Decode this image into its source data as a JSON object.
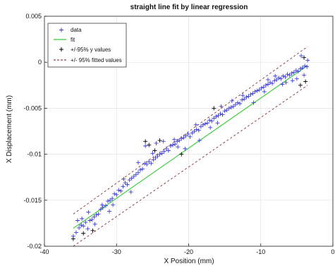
{
  "chart_data": {
    "type": "scatter",
    "title": "straight line fit by linear regression",
    "xlabel": "X Position (mm)",
    "ylabel": "X Displacement (mm)",
    "xlim": [
      -40,
      0
    ],
    "ylim": [
      -0.02,
      0.005
    ],
    "xticks": [
      -40,
      -30,
      -20,
      -10,
      0
    ],
    "xtick_labels": [
      "-40",
      "-30",
      "-20",
      "-10",
      "0"
    ],
    "yticks": [
      -0.02,
      -0.015,
      -0.01,
      -0.005,
      0,
      0.005
    ],
    "ytick_labels": [
      "-0.02",
      "-0.015",
      "-0.01",
      "-0.005",
      "0",
      "0.005"
    ],
    "grid": true,
    "legend_position": "top-left",
    "series": [
      {
        "name": "data",
        "marker": "+",
        "color": "#3b3bd6",
        "points": [
          [
            -36.0,
            -0.0189
          ],
          [
            -35.6,
            -0.0185
          ],
          [
            -35.2,
            -0.018
          ],
          [
            -34.9,
            -0.0177
          ],
          [
            -34.6,
            -0.0178
          ],
          [
            -34.3,
            -0.0174
          ],
          [
            -34.0,
            -0.0181
          ],
          [
            -33.7,
            -0.0172
          ],
          [
            -33.4,
            -0.0171
          ],
          [
            -33.1,
            -0.0168
          ],
          [
            -32.8,
            -0.0166
          ],
          [
            -32.5,
            -0.0165
          ],
          [
            -32.2,
            -0.016
          ],
          [
            -31.9,
            -0.0158
          ],
          [
            -31.5,
            -0.0156
          ],
          [
            -31.2,
            -0.0151
          ],
          [
            -30.9,
            -0.015
          ],
          [
            -30.6,
            -0.0148
          ],
          [
            -30.3,
            -0.0143
          ],
          [
            -30.0,
            -0.0144
          ],
          [
            -29.7,
            -0.0139
          ],
          [
            -29.4,
            -0.014
          ],
          [
            -29.1,
            -0.0135
          ],
          [
            -28.8,
            -0.0131
          ],
          [
            -28.5,
            -0.0133
          ],
          [
            -28.2,
            -0.0128
          ],
          [
            -27.9,
            -0.0126
          ],
          [
            -27.6,
            -0.0124
          ],
          [
            -27.3,
            -0.0122
          ],
          [
            -27.0,
            -0.012
          ],
          [
            -26.7,
            -0.0117
          ],
          [
            -26.4,
            -0.0116
          ],
          [
            -26.1,
            -0.011
          ],
          [
            -25.8,
            -0.0111
          ],
          [
            -25.5,
            -0.0108
          ],
          [
            -25.2,
            -0.011
          ],
          [
            -24.9,
            -0.0106
          ],
          [
            -24.6,
            -0.0104
          ],
          [
            -24.3,
            -0.0102
          ],
          [
            -24.0,
            -0.01
          ],
          [
            -23.7,
            -0.0099
          ],
          [
            -23.4,
            -0.0097
          ],
          [
            -23.1,
            -0.0094
          ],
          [
            -22.8,
            -0.0096
          ],
          [
            -22.5,
            -0.0091
          ],
          [
            -22.2,
            -0.009
          ],
          [
            -21.9,
            -0.0089
          ],
          [
            -21.6,
            -0.0086
          ],
          [
            -21.3,
            -0.0085
          ],
          [
            -21.0,
            -0.0083
          ],
          [
            -20.7,
            -0.0082
          ],
          [
            -20.4,
            -0.008
          ],
          [
            -20.1,
            -0.0078
          ],
          [
            -19.8,
            -0.0081
          ],
          [
            -19.5,
            -0.0077
          ],
          [
            -19.2,
            -0.0075
          ],
          [
            -18.9,
            -0.0073
          ],
          [
            -18.6,
            -0.0074
          ],
          [
            -18.3,
            -0.007
          ],
          [
            -18.0,
            -0.0068
          ],
          [
            -17.7,
            -0.0067
          ],
          [
            -17.4,
            -0.0066
          ],
          [
            -17.1,
            -0.0063
          ],
          [
            -16.8,
            -0.0064
          ],
          [
            -16.5,
            -0.0061
          ],
          [
            -16.2,
            -0.0059
          ],
          [
            -15.9,
            -0.0058
          ],
          [
            -15.6,
            -0.0056
          ],
          [
            -15.3,
            -0.0057
          ],
          [
            -15.0,
            -0.0053
          ],
          [
            -14.7,
            -0.0052
          ],
          [
            -14.4,
            -0.005
          ],
          [
            -14.1,
            -0.0049
          ],
          [
            -13.8,
            -0.0048
          ],
          [
            -13.5,
            -0.0046
          ],
          [
            -13.2,
            -0.0044
          ],
          [
            -12.9,
            -0.0045
          ],
          [
            -12.6,
            -0.0041
          ],
          [
            -12.3,
            -0.004
          ],
          [
            -12.0,
            -0.0038
          ],
          [
            -11.7,
            -0.0037
          ],
          [
            -11.4,
            -0.0035
          ],
          [
            -11.1,
            -0.0034
          ],
          [
            -10.8,
            -0.0032
          ],
          [
            -10.5,
            -0.0031
          ],
          [
            -10.2,
            -0.003
          ],
          [
            -9.9,
            -0.0028
          ],
          [
            -9.6,
            -0.0027
          ],
          [
            -9.3,
            -0.0025
          ],
          [
            -9.0,
            -0.0024
          ],
          [
            -8.7,
            -0.0022
          ],
          [
            -8.4,
            -0.0023
          ],
          [
            -8.1,
            -0.002
          ],
          [
            -7.8,
            -0.0019
          ],
          [
            -7.5,
            -0.0017
          ],
          [
            -7.2,
            -0.0018
          ],
          [
            -6.9,
            -0.0015
          ],
          [
            -6.6,
            -0.0016
          ],
          [
            -6.3,
            -0.0013
          ],
          [
            -6.0,
            -0.0014
          ],
          [
            -5.7,
            -0.0012
          ],
          [
            -5.4,
            -0.0011
          ],
          [
            -5.1,
            -0.0009
          ],
          [
            -4.8,
            -0.001
          ],
          [
            -4.5,
            -0.0007
          ],
          [
            -4.2,
            -0.0006
          ],
          [
            -3.9,
            -0.0004
          ],
          [
            -3.6,
            -0.0005
          ],
          [
            -34.8,
            -0.017
          ],
          [
            -33.9,
            -0.0163
          ],
          [
            -32.0,
            -0.0155
          ],
          [
            -30.5,
            -0.0155
          ],
          [
            -29.0,
            -0.0127
          ],
          [
            -27.0,
            -0.0109
          ],
          [
            -25.0,
            -0.0099
          ],
          [
            -23.5,
            -0.0086
          ],
          [
            -21.5,
            -0.0092
          ],
          [
            -19.0,
            -0.0068
          ],
          [
            -17.0,
            -0.0071
          ],
          [
            -15.5,
            -0.0048
          ],
          [
            -14.0,
            -0.0042
          ],
          [
            -12.5,
            -0.0036
          ],
          [
            -11.0,
            -0.0044
          ],
          [
            -9.5,
            -0.0032
          ],
          [
            -8.0,
            -0.0015
          ],
          [
            -6.5,
            -0.0022
          ],
          [
            -5.0,
            -0.0018
          ],
          [
            -4.0,
            -0.0014
          ],
          [
            -3.5,
            0.0002
          ],
          [
            -4.4,
            0.0007
          ],
          [
            -5.6,
            -0.002
          ],
          [
            -7.0,
            -0.0024
          ],
          [
            -9.0,
            -0.0019
          ],
          [
            -26.0,
            -0.0091
          ],
          [
            -24.5,
            -0.0088
          ],
          [
            -22.0,
            -0.0084
          ],
          [
            -20.5,
            -0.0094
          ],
          [
            -18.5,
            -0.0085
          ],
          [
            -35.4,
            -0.0172
          ],
          [
            -33.0,
            -0.0176
          ],
          [
            -31.0,
            -0.0162
          ],
          [
            -28.0,
            -0.0141
          ],
          [
            -16.0,
            -0.0066
          ]
        ]
      },
      {
        "name": "fit",
        "type": "line",
        "color": "#33cc33",
        "x": [
          -36.0,
          -3.5
        ],
        "y": [
          -0.01805,
          -0.00035
        ]
      },
      {
        "name": "+/-95% y values",
        "marker": "+",
        "color": "#000000",
        "points": [
          [
            -36.0,
            -0.0192
          ],
          [
            -34.6,
            -0.0186
          ],
          [
            -33.3,
            -0.0183
          ],
          [
            -26.0,
            -0.0086
          ],
          [
            -24.0,
            -0.0085
          ],
          [
            -25.5,
            -0.009
          ],
          [
            -21.0,
            -0.01
          ],
          [
            -16.5,
            -0.005
          ],
          [
            -4.5,
            -0.0025
          ],
          [
            -4.0,
            0.0005
          ],
          [
            -3.8,
            -0.0021
          ],
          [
            -24.7,
            -0.0096
          ]
        ]
      },
      {
        "name": "+/- 95% fitted values",
        "type": "band",
        "color": "#7a1a1a",
        "dash": "3,3",
        "upper": {
          "x": [
            -36.0,
            -3.5
          ],
          "y": [
            -0.0165,
            0.0017
          ]
        },
        "lower": {
          "x": [
            -36.0,
            -3.5
          ],
          "y": [
            -0.02,
            -0.0025
          ]
        }
      }
    ]
  }
}
